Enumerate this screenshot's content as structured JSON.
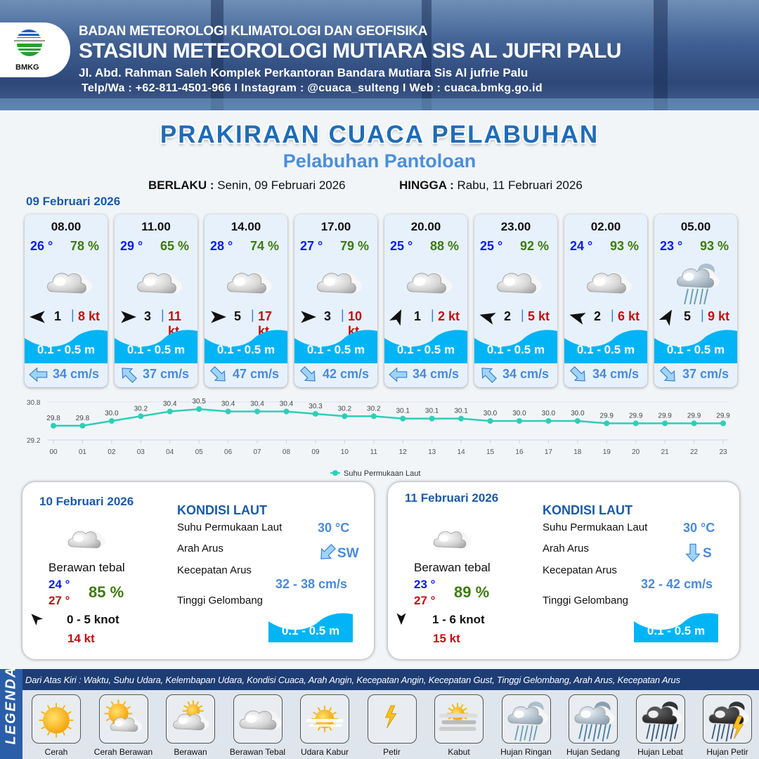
{
  "header": {
    "agency": "BADAN METEOROLOGI KLIMATOLOGI DAN GEOFISIKA",
    "station": "STASIUN METEOROLOGI MUTIARA SIS AL JUFRI PALU",
    "address": "Jl. Abd. Rahman Saleh Komplek Perkantoran Bandara Mutiara Sis Al jufrie Palu",
    "contact": "Telp/Wa : +62-811-4501-966  I  Instagram : @cuaca_sulteng  I  Web : cuaca.bmkg.go.id",
    "logo_text": "BMKG"
  },
  "title": "PRAKIRAAN CUACA PELABUHAN",
  "subtitle": "Pelabuhan Pantoloan",
  "validity": {
    "from_label": "BERLAKU :",
    "from_value": "Senin, 09 Februari 2026",
    "to_label": "HINGGA :",
    "to_value": "Rabu, 11 Februari 2026"
  },
  "day1": {
    "date": "09 Februari 2026",
    "cards": [
      {
        "time": "08.00",
        "temp": "26 °",
        "hum": "78 %",
        "icon": "berawan-tebal",
        "wind_dir_deg": 270,
        "wind_speed": "1",
        "gust": "8 kt",
        "wave": "0.1 - 0.5 m",
        "current_dir_deg": 270,
        "current_speed": "34 cm/s"
      },
      {
        "time": "11.00",
        "temp": "29 °",
        "hum": "65 %",
        "icon": "berawan-tebal",
        "wind_dir_deg": 90,
        "wind_speed": "3",
        "gust": "11 kt",
        "wave": "0.1 - 0.5 m",
        "current_dir_deg": 315,
        "current_speed": "37 cm/s"
      },
      {
        "time": "14.00",
        "temp": "28 °",
        "hum": "74 %",
        "icon": "berawan-tebal",
        "wind_dir_deg": 90,
        "wind_speed": "5",
        "gust": "17 kt",
        "wave": "0.1 - 0.5 m",
        "current_dir_deg": 135,
        "current_speed": "47 cm/s"
      },
      {
        "time": "17.00",
        "temp": "27 °",
        "hum": "79 %",
        "icon": "berawan-tebal",
        "wind_dir_deg": 90,
        "wind_speed": "3",
        "gust": "10 kt",
        "wave": "0.1 - 0.5 m",
        "current_dir_deg": 135,
        "current_speed": "42 cm/s"
      },
      {
        "time": "20.00",
        "temp": "25 °",
        "hum": "88 %",
        "icon": "berawan-tebal",
        "wind_dir_deg": 25,
        "wind_speed": "1",
        "gust": "2 kt",
        "wave": "0.1 - 0.5 m",
        "current_dir_deg": 270,
        "current_speed": "34 cm/s"
      },
      {
        "time": "23.00",
        "temp": "25 °",
        "hum": "92 %",
        "icon": "berawan-tebal",
        "wind_dir_deg": 285,
        "wind_speed": "2",
        "gust": "5 kt",
        "wave": "0.1 - 0.5 m",
        "current_dir_deg": 315,
        "current_speed": "34 cm/s"
      },
      {
        "time": "02.00",
        "temp": "24 °",
        "hum": "93 %",
        "icon": "berawan-tebal",
        "wind_dir_deg": 285,
        "wind_speed": "2",
        "gust": "6 kt",
        "wave": "0.1 - 0.5 m",
        "current_dir_deg": 135,
        "current_speed": "34 cm/s"
      },
      {
        "time": "05.00",
        "temp": "23 °",
        "hum": "93 %",
        "icon": "hujan-ringan",
        "wind_dir_deg": 30,
        "wind_speed": "5",
        "gust": "9 kt",
        "wave": "0.1 - 0.5 m",
        "current_dir_deg": 135,
        "current_speed": "37 cm/s"
      }
    ]
  },
  "chart_data": {
    "type": "line",
    "categories": [
      "00",
      "01",
      "02",
      "03",
      "04",
      "05",
      "06",
      "07",
      "08",
      "09",
      "10",
      "11",
      "12",
      "13",
      "14",
      "15",
      "16",
      "17",
      "18",
      "19",
      "20",
      "21",
      "22",
      "23"
    ],
    "series": [
      {
        "name": "Suhu Permukaan Laut",
        "values": [
          29.8,
          29.8,
          30.0,
          30.2,
          30.4,
          30.5,
          30.4,
          30.4,
          30.4,
          30.3,
          30.2,
          30.2,
          30.1,
          30.1,
          30.1,
          30.0,
          30.0,
          30.0,
          30.0,
          29.9,
          29.9,
          29.9,
          29.9,
          29.9
        ],
        "color": "#2ad0b8"
      }
    ],
    "yticks": [
      "30.8",
      "29.2"
    ],
    "ylim": [
      29.2,
      30.8
    ],
    "legend": "bottom",
    "grid": true
  },
  "panels": [
    {
      "date": "10 Februari 2026",
      "icon": "berawan-tebal",
      "condition": "Berawan tebal",
      "tmin": "24 °",
      "tmax": "27 °",
      "hum": "85 %",
      "wind_dir_deg": 315,
      "wind_range": "0  - 5 knot",
      "gust": "14 kt",
      "sea_title": "KONDISI LAUT",
      "sst_label": "Suhu Permukaan Laut",
      "sst": "30 °C",
      "dir_label": "Arah Arus",
      "current_dir": "SW",
      "current_dir_deg": 225,
      "speed_label": "Kecepatan Arus",
      "current_speed": "32  - 38 cm/s",
      "wave_label": "Tinggi Gelombang",
      "wave": "0.1 - 0.5 m"
    },
    {
      "date": "11 Februari 2026",
      "icon": "berawan-tebal",
      "condition": "Berawan tebal",
      "tmin": "23 °",
      "tmax": "27 °",
      "hum": "89 %",
      "wind_dir_deg": 180,
      "wind_range": "1  - 6 knot",
      "gust": "15 kt",
      "sea_title": "KONDISI LAUT",
      "sst_label": "Suhu Permukaan Laut",
      "sst": "30 °C",
      "dir_label": "Arah Arus",
      "current_dir": "S",
      "current_dir_deg": 180,
      "speed_label": "Kecepatan Arus",
      "current_speed": "32  - 42 cm/s",
      "wave_label": "Tinggi Gelombang",
      "wave": "0.1 - 0.5 m"
    }
  ],
  "legend": {
    "title": "LEGENDA",
    "description": "Dari Atas Kiri : Waktu, Suhu Udara, Kelembapan Udara, Kondisi Cuaca, Arah Angin, Kecepatan Angin, Kecepatan Gust, Tinggi Gelombang, Arah Arus, Kecepatan Arus",
    "items": [
      {
        "label": "Cerah",
        "icon": "cerah"
      },
      {
        "label": "Cerah Berawan",
        "icon": "cerah-berawan"
      },
      {
        "label": "Berawan",
        "icon": "berawan"
      },
      {
        "label": "Berawan Tebal",
        "icon": "berawan-tebal"
      },
      {
        "label": "Udara Kabur",
        "icon": "udara-kabur"
      },
      {
        "label": "Petir",
        "icon": "petir"
      },
      {
        "label": "Kabut",
        "icon": "kabut"
      },
      {
        "label": "Hujan Ringan",
        "icon": "hujan-ringan"
      },
      {
        "label": "Hujan Sedang",
        "icon": "hujan-sedang"
      },
      {
        "label": "Hujan Lebat",
        "icon": "hujan-lebat"
      },
      {
        "label": "Hujan Petir",
        "icon": "hujan-petir"
      }
    ]
  },
  "colors": {
    "brand": "#1f6cb8",
    "wave": "#00b4f5",
    "temp": "#0a1cf0",
    "humidity": "#3e7a10",
    "gust": "#c01010",
    "current": "#4a8ad8"
  }
}
